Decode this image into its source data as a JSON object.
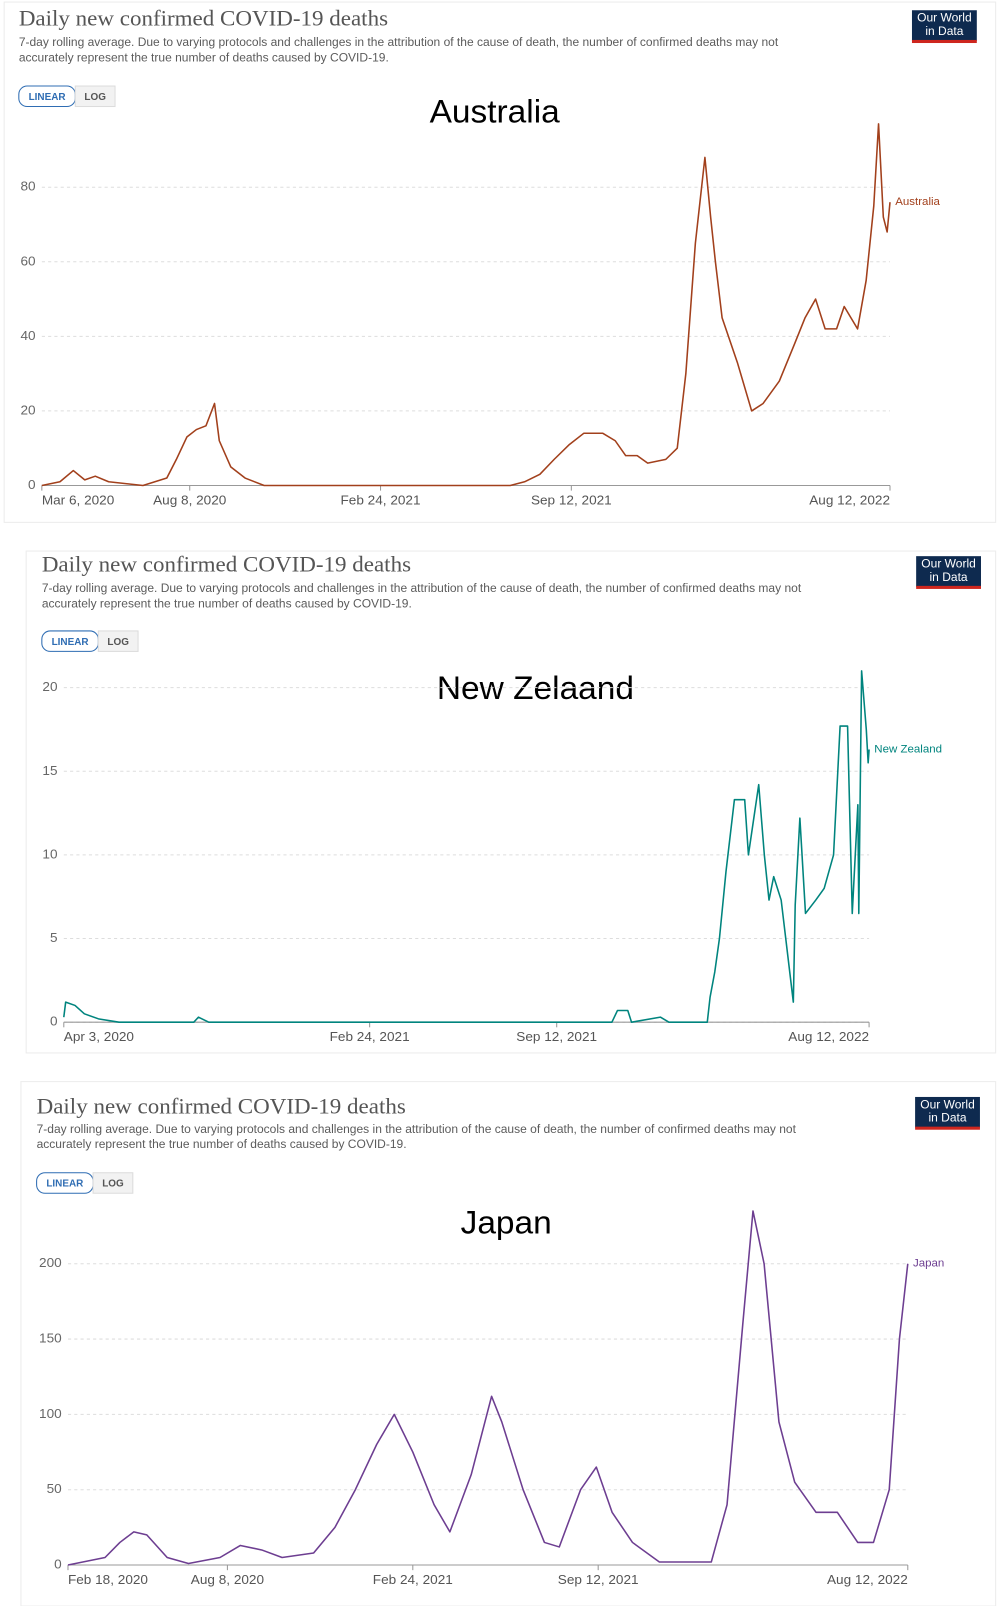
{
  "chart_data": [
    {
      "type": "line",
      "title": "Daily new confirmed COVID-19 deaths",
      "subtitle_lines": [
        "7-day rolling average. Due to varying protocols and challenges in the attribution of the cause of death, the number of confirmed deaths may not",
        "accurately represent the true number of deaths caused by COVID-19."
      ],
      "buttons": [
        "LINEAR",
        "LOG"
      ],
      "log_scale": false,
      "logo": [
        "Our World",
        "in Data"
      ],
      "annotation": "Australia",
      "grid": true,
      "x": [
        "2020-03-06",
        "2020-03-25",
        "2020-04-08",
        "2020-04-20",
        "2020-05-01",
        "2020-05-15",
        "2020-06-20",
        "2020-07-15",
        "2020-07-25",
        "2020-08-05",
        "2020-08-15",
        "2020-08-25",
        "2020-09-03",
        "2020-09-08",
        "2020-09-20",
        "2020-10-05",
        "2020-10-25",
        "2021-07-10",
        "2021-07-25",
        "2021-08-10",
        "2021-08-25",
        "2021-09-10",
        "2021-09-25",
        "2021-10-15",
        "2021-10-28",
        "2021-11-08",
        "2021-11-20",
        "2021-12-01",
        "2021-12-20",
        "2022-01-01",
        "2022-01-10",
        "2022-01-20",
        "2022-01-30",
        "2022-02-05",
        "2022-02-10",
        "2022-02-17",
        "2022-03-05",
        "2022-03-20",
        "2022-04-01",
        "2022-04-18",
        "2022-05-04",
        "2022-05-15",
        "2022-05-26",
        "2022-06-05",
        "2022-06-17",
        "2022-06-25",
        "2022-07-09",
        "2022-07-18",
        "2022-07-26",
        "2022-07-31",
        "2022-08-05",
        "2022-08-09",
        "2022-08-12"
      ],
      "series": [
        {
          "name": "Australia",
          "color": "#a2401c",
          "values": [
            0,
            1,
            4,
            1.5,
            2.5,
            1,
            0,
            2,
            7,
            13,
            15,
            16,
            22,
            12,
            5,
            2,
            0,
            0,
            1,
            3,
            7,
            11,
            14,
            14,
            12,
            8,
            8,
            6,
            7,
            10,
            30,
            65,
            88,
            72,
            60,
            45,
            33,
            20,
            22,
            28,
            38,
            45,
            50,
            42,
            42,
            48,
            42,
            55,
            75,
            97,
            72,
            68,
            76
          ]
        }
      ],
      "xlim": [
        "2020-03-06",
        "2022-08-12"
      ],
      "xticks": [
        {
          "value": "2020-03-06",
          "label": "Mar 6, 2020"
        },
        {
          "value": "2020-08-08",
          "label": "Aug 8, 2020"
        },
        {
          "value": "2021-02-24",
          "label": "Feb 24, 2021"
        },
        {
          "value": "2021-09-12",
          "label": "Sep 12, 2021"
        },
        {
          "value": "2022-08-12",
          "label": "Aug 12, 2022"
        }
      ],
      "ylim": [
        0,
        100
      ],
      "yticks": [
        0,
        20,
        40,
        60,
        80
      ]
    },
    {
      "type": "line",
      "title": "Daily new confirmed COVID-19 deaths",
      "subtitle_lines": [
        "7-day rolling average. Due to varying protocols and challenges in the attribution of the cause of death, the number of confirmed deaths may not",
        "accurately represent the true number of deaths caused by COVID-19."
      ],
      "buttons": [
        "LINEAR",
        "LOG"
      ],
      "log_scale": false,
      "logo": [
        "Our World",
        "in Data"
      ],
      "annotation": "New Zelaand",
      "grid": true,
      "x": [
        "2020-04-03",
        "2020-04-05",
        "2020-04-15",
        "2020-04-25",
        "2020-05-10",
        "2020-06-01",
        "2020-08-20",
        "2020-08-25",
        "2020-09-05",
        "2021-11-10",
        "2021-11-16",
        "2021-11-27",
        "2021-12-01",
        "2022-01-01",
        "2022-01-10",
        "2022-02-20",
        "2022-02-23",
        "2022-02-28",
        "2022-03-05",
        "2022-03-12",
        "2022-03-21",
        "2022-04-01",
        "2022-04-05",
        "2022-04-16",
        "2022-04-22",
        "2022-04-27",
        "2022-05-02",
        "2022-05-10",
        "2022-05-23",
        "2022-05-25",
        "2022-05-30",
        "2022-06-05",
        "2022-06-16",
        "2022-06-25",
        "2022-07-05",
        "2022-07-12",
        "2022-07-20",
        "2022-07-25",
        "2022-07-31",
        "2022-08-01",
        "2022-08-04",
        "2022-08-09",
        "2022-08-11",
        "2022-08-12"
      ],
      "series": [
        {
          "name": "New Zealand",
          "color": "#00847e",
          "values": [
            0.3,
            1.2,
            1,
            0.5,
            0.2,
            0,
            0,
            0.3,
            0,
            0,
            0.7,
            0.7,
            0,
            0.3,
            0,
            0,
            1.5,
            3,
            5,
            9,
            13.3,
            13.3,
            10,
            14.2,
            10,
            7.3,
            8.7,
            7.3,
            1.2,
            7,
            12.2,
            6.5,
            7.3,
            8,
            10,
            17.7,
            17.7,
            6.5,
            13,
            6.5,
            21,
            17.5,
            15.5,
            16.3
          ]
        }
      ],
      "xlim": [
        "2020-04-03",
        "2022-08-12"
      ],
      "xticks": [
        {
          "value": "2020-04-03",
          "label": "Apr 3, 2020"
        },
        {
          "value": "2021-02-24",
          "label": "Feb 24, 2021"
        },
        {
          "value": "2021-09-12",
          "label": "Sep 12, 2021"
        },
        {
          "value": "2022-08-12",
          "label": "Aug 12, 2022"
        }
      ],
      "ylim": [
        0,
        21
      ],
      "yticks": [
        0,
        5,
        10,
        15,
        20
      ]
    },
    {
      "type": "line",
      "title": "Daily new confirmed COVID-19 deaths",
      "subtitle_lines": [
        "7-day rolling average. Due to varying protocols and challenges in the attribution of the cause of death, the number of confirmed deaths may not",
        "accurately represent the true number of deaths caused by COVID-19."
      ],
      "buttons": [
        "LINEAR",
        "LOG"
      ],
      "log_scale": false,
      "logo": [
        "Our World",
        "in Data"
      ],
      "annotation": "Japan",
      "grid": true,
      "x": [
        "2020-02-18",
        "2020-03-29",
        "2020-04-14",
        "2020-04-29",
        "2020-05-13",
        "2020-06-04",
        "2020-06-27",
        "2020-07-31",
        "2020-08-22",
        "2020-09-14",
        "2020-10-06",
        "2020-11-09",
        "2020-12-02",
        "2020-12-24",
        "2021-01-16",
        "2021-02-04",
        "2021-02-24",
        "2021-03-19",
        "2021-04-05",
        "2021-04-28",
        "2021-05-20",
        "2021-05-31",
        "2021-06-23",
        "2021-07-16",
        "2021-08-01",
        "2021-08-24",
        "2021-09-10",
        "2021-09-27",
        "2021-10-19",
        "2021-11-17",
        "2022-01-12",
        "2022-01-29",
        "2022-02-15",
        "2022-02-26",
        "2022-03-10",
        "2022-03-26",
        "2022-04-12",
        "2022-05-05",
        "2022-05-28",
        "2022-06-19",
        "2022-07-06",
        "2022-07-23",
        "2022-08-03",
        "2022-08-12"
      ],
      "series": [
        {
          "name": "Japan",
          "color": "#6d3e91",
          "values": [
            0,
            5,
            15,
            22,
            20,
            5,
            1,
            5,
            13,
            10,
            5,
            8,
            25,
            50,
            80,
            100,
            75,
            40,
            22,
            60,
            112,
            95,
            50,
            15,
            12,
            50,
            65,
            35,
            15,
            2,
            2,
            40,
            160,
            235,
            200,
            95,
            55,
            35,
            35,
            15,
            15,
            50,
            150,
            200
          ]
        }
      ],
      "xlim": [
        "2020-02-18",
        "2022-08-12"
      ],
      "xticks": [
        {
          "value": "2020-02-18",
          "label": "Feb 18, 2020"
        },
        {
          "value": "2020-08-08",
          "label": "Aug 8, 2020"
        },
        {
          "value": "2021-02-24",
          "label": "Feb 24, 2021"
        },
        {
          "value": "2021-09-12",
          "label": "Sep 12, 2021"
        },
        {
          "value": "2022-08-12",
          "label": "Aug 12, 2022"
        }
      ],
      "ylim": [
        0,
        240
      ],
      "yticks": [
        0,
        50,
        100,
        150,
        200
      ]
    }
  ]
}
